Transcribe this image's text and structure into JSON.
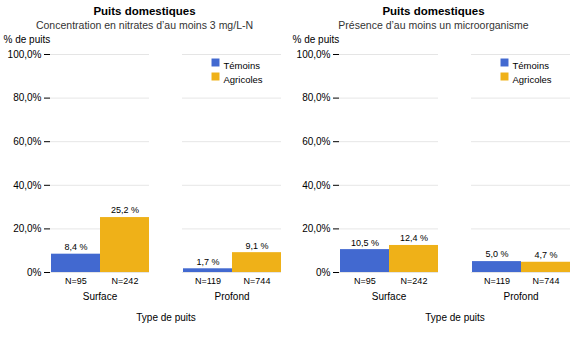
{
  "chart_data": [
    {
      "type": "bar",
      "title": "Puits domestiques",
      "subtitle": "Concentration en nitrates d’au moins 3 mg/L-N",
      "categories": [
        "Surface",
        "Profond"
      ],
      "series": [
        {
          "name": "Témoins",
          "values": [
            8.4,
            1.7
          ],
          "value_labels": [
            "8,4 %",
            "1,7 %"
          ],
          "n_labels": [
            "N=95",
            "N=119"
          ]
        },
        {
          "name": "Agricoles",
          "values": [
            25.2,
            9.1
          ],
          "value_labels": [
            "25,2 %",
            "9,1 %"
          ],
          "n_labels": [
            "N=242",
            "N=744"
          ]
        }
      ],
      "xlabel": "Type de puits",
      "ylabel": "% de puits",
      "ylim": [
        0,
        100
      ],
      "yticks": [
        {
          "value": 0,
          "label": "0%"
        },
        {
          "value": 20,
          "label": "20,0%"
        },
        {
          "value": 40,
          "label": "40,0%"
        },
        {
          "value": 60,
          "label": "60,0%"
        },
        {
          "value": 80,
          "label": "80,0%"
        },
        {
          "value": 100,
          "label": "100,0%"
        }
      ],
      "grid": true,
      "legend": "upper right",
      "data_labels": true
    },
    {
      "type": "bar",
      "title": "Puits domestiques",
      "subtitle": "Présence d’au moins un microorganisme",
      "categories": [
        "Surface",
        "Profond"
      ],
      "series": [
        {
          "name": "Témoins",
          "values": [
            10.5,
            5.0
          ],
          "value_labels": [
            "10,5 %",
            "5,0 %"
          ],
          "n_labels": [
            "N=95",
            "N=119"
          ]
        },
        {
          "name": "Agricoles",
          "values": [
            12.4,
            4.7
          ],
          "value_labels": [
            "12,4 %",
            "4,7 %"
          ],
          "n_labels": [
            "N=242",
            "N=744"
          ]
        }
      ],
      "xlabel": "Type de puits",
      "ylabel": "% de puits",
      "ylim": [
        0,
        100
      ],
      "yticks": [
        {
          "value": 0,
          "label": "0%"
        },
        {
          "value": 20,
          "label": "20,0%"
        },
        {
          "value": 40,
          "label": "40,0%"
        },
        {
          "value": 60,
          "label": "60,0%"
        },
        {
          "value": 80,
          "label": "80,0%"
        },
        {
          "value": 100,
          "label": "100,0%"
        }
      ],
      "grid": true,
      "legend": "upper right",
      "data_labels": true
    }
  ]
}
